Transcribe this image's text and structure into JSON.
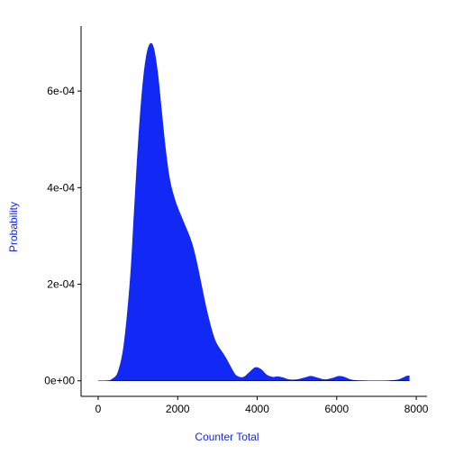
{
  "chart_data": {
    "type": "area",
    "title": "",
    "xlabel": "Counter Total",
    "ylabel": "Probability",
    "xlim": [
      -430,
      8270
    ],
    "ylim": [
      -3.22e-05,
      0.0007345
    ],
    "x_ticks": [
      0,
      2000,
      4000,
      6000,
      8000
    ],
    "x_tick_labels": [
      "0",
      "2000",
      "4000",
      "6000",
      "8000"
    ],
    "y_ticks": [
      0,
      0.0002,
      0.0004,
      0.0006
    ],
    "y_tick_labels": [
      "0e+00",
      "2e-04",
      "4e-04",
      "6e-04"
    ],
    "grid": false,
    "legend": "none",
    "fill_color": "#1228F5",
    "label_color": "#1228F5",
    "series": [
      {
        "x": [
          0,
          200,
          350,
          500,
          650,
          800,
          900,
          1000,
          1100,
          1200,
          1300,
          1400,
          1500,
          1600,
          1700,
          1800,
          1900,
          2000,
          2100,
          2200,
          2300,
          2400,
          2500,
          2600,
          2700,
          2800,
          2900,
          3000,
          3200,
          3400,
          3500,
          3650,
          3800,
          3950,
          4100,
          4250,
          4400,
          4500,
          4650,
          4800,
          5000,
          5200,
          5350,
          5500,
          5700,
          5900,
          6050,
          6200,
          6400,
          6800,
          7200,
          7500,
          7650,
          7750,
          7830
        ],
        "y": [
          0,
          5e-07,
          4e-06,
          2e-05,
          8e-05,
          0.00021,
          0.00035,
          0.00049,
          0.0006,
          0.00067,
          0.0006979,
          0.00069,
          0.00064,
          0.00056,
          0.00048,
          0.00042,
          0.000385,
          0.00036,
          0.00034,
          0.00032,
          0.0003,
          0.000275,
          0.00024,
          0.0002,
          0.00016,
          0.000125,
          9.5e-05,
          7.5e-05,
          5e-05,
          2e-05,
          1e-05,
          8e-06,
          1.8e-05,
          2.8e-05,
          2.4e-05,
          1.2e-05,
          8e-06,
          9e-06,
          7e-06,
          3e-06,
          3e-06,
          7e-06,
          1e-05,
          7e-06,
          3e-06,
          6e-06,
          1e-05,
          8e-06,
          2e-06,
          5e-07,
          5e-07,
          2e-06,
          6e-06,
          1e-05,
          1.1e-05
        ]
      }
    ]
  }
}
